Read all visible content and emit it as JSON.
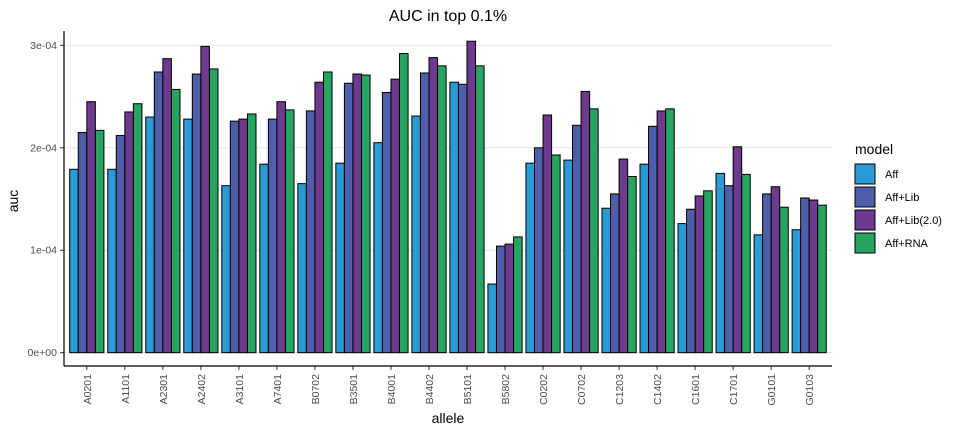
{
  "chart_data": {
    "type": "bar",
    "title": "AUC in top 0.1%",
    "xlabel": "allele",
    "ylabel": "auc",
    "ylim": [
      -1.3e-05,
      0.000314
    ],
    "yticks": [
      0,
      0.0001,
      0.0002,
      0.0003
    ],
    "ytick_labels": [
      "0e+00",
      "1e-04",
      "2e-04",
      "3e-04"
    ],
    "grid": "horizontal major",
    "legend": {
      "title": "model",
      "position": "right"
    },
    "categories": [
      "A0201",
      "A1101",
      "A2301",
      "A2402",
      "A3101",
      "A7401",
      "B0702",
      "B3501",
      "B4001",
      "B4402",
      "B5101",
      "B5802",
      "C0202",
      "C0702",
      "C1203",
      "C1402",
      "C1601",
      "C1701",
      "G0101",
      "G0103"
    ],
    "series": [
      {
        "name": "Aff",
        "color": "#2b9bd6",
        "values": [
          0.000179,
          0.000179,
          0.00023,
          0.000228,
          0.000163,
          0.000184,
          0.000165,
          0.000185,
          0.000205,
          0.000231,
          0.000264,
          6.7e-05,
          0.000185,
          0.000188,
          0.000141,
          0.000184,
          0.000126,
          0.000175,
          0.000115,
          0.00012
        ]
      },
      {
        "name": "Aff+Lib",
        "color": "#4e5ea8",
        "values": [
          0.000215,
          0.000212,
          0.000274,
          0.000272,
          0.000226,
          0.000228,
          0.000236,
          0.000263,
          0.000254,
          0.000273,
          0.000262,
          0.000104,
          0.0002,
          0.000222,
          0.000155,
          0.000221,
          0.00014,
          0.000163,
          0.000155,
          0.000151
        ]
      },
      {
        "name": "Aff+Lib(2.0)",
        "color": "#6d3a8d",
        "values": [
          0.000245,
          0.000235,
          0.000287,
          0.000299,
          0.000228,
          0.000245,
          0.000264,
          0.000272,
          0.000267,
          0.000288,
          0.000304,
          0.000106,
          0.000232,
          0.000255,
          0.000189,
          0.000236,
          0.000153,
          0.000201,
          0.000162,
          0.000149
        ]
      },
      {
        "name": "Aff+RNA",
        "color": "#27a560",
        "values": [
          0.000217,
          0.000243,
          0.000257,
          0.000277,
          0.000233,
          0.000237,
          0.000274,
          0.000271,
          0.000292,
          0.00028,
          0.00028,
          0.000113,
          0.000193,
          0.000238,
          0.000172,
          0.000238,
          0.000158,
          0.000174,
          0.000142,
          0.000144
        ]
      }
    ]
  }
}
